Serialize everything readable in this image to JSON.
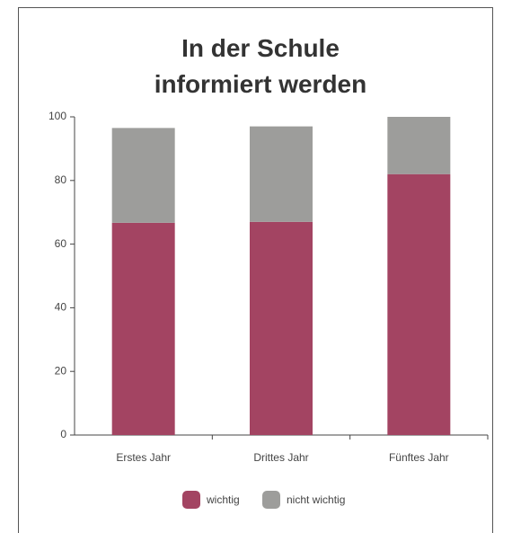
{
  "chart_data": {
    "type": "stacked_bar",
    "title": "In der Schule informiert werden",
    "categories": [
      "Erstes Jahr",
      "Drittes Jahr",
      "Fünftes Jahr"
    ],
    "series": [
      {
        "name": "wichtig",
        "color": "#a34462",
        "values": [
          66.7,
          67,
          82
        ]
      },
      {
        "name": "nicht wichtig",
        "color": "#9d9d9b",
        "values": [
          29.8,
          30,
          18
        ]
      }
    ],
    "ylim": [
      0,
      100
    ],
    "yticks": [
      0,
      20,
      40,
      60,
      80,
      100
    ],
    "grid": false,
    "legend": "bottom"
  }
}
